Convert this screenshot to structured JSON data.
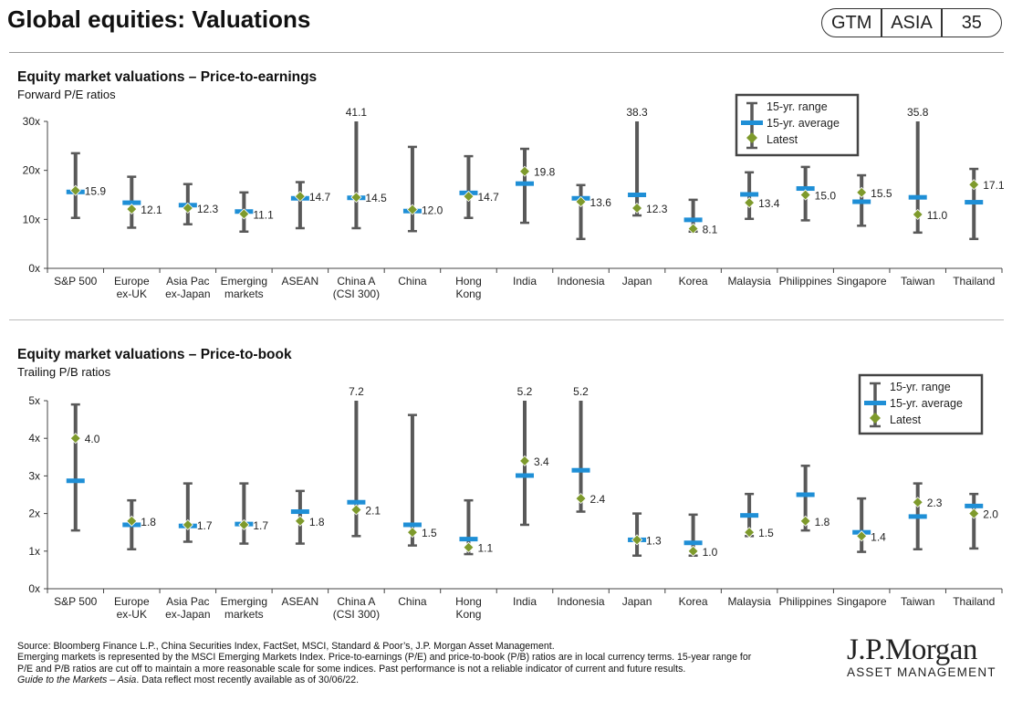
{
  "header": {
    "title": "Global equities: Valuations",
    "badge": [
      "GTM",
      "ASIA",
      "35"
    ]
  },
  "legend": {
    "range": "15-yr. range",
    "average": "15-yr. average",
    "latest": "Latest"
  },
  "colors": {
    "range": "#595959",
    "average": "#1f8fd6",
    "latest": "#7e9a2c",
    "text": "#222222"
  },
  "chart_data": [
    {
      "type": "range-bar",
      "title": "Equity market valuations – Price-to-earnings",
      "subtitle": "Forward P/E ratios",
      "ylim": [
        0,
        30
      ],
      "yticks": [
        0,
        10,
        20,
        30
      ],
      "ytick_labels": [
        "0x",
        "10x",
        "20x",
        "30x"
      ],
      "categories": [
        "S&P 500",
        "Europe\nex-UK",
        "Asia Pac\nex-Japan",
        "Emerging\nmarkets",
        "ASEAN",
        "China A\n(CSI 300)",
        "China",
        "Hong\nKong",
        "India",
        "Indonesia",
        "Japan",
        "Korea",
        "Malaysia",
        "Philippines",
        "Singapore",
        "Taiwan",
        "Thailand"
      ],
      "range_low": [
        10.3,
        8.3,
        9.0,
        7.5,
        8.2,
        8.2,
        7.6,
        10.3,
        9.3,
        6.0,
        10.8,
        7.5,
        10.1,
        9.8,
        8.7,
        7.3,
        6.0
      ],
      "range_high": [
        23.5,
        18.7,
        17.2,
        15.5,
        17.6,
        41.1,
        24.8,
        22.9,
        24.4,
        17.0,
        38.3,
        14.0,
        19.6,
        20.7,
        19.0,
        35.8,
        20.3
      ],
      "average": [
        15.6,
        13.4,
        12.9,
        11.6,
        14.3,
        14.4,
        11.7,
        15.4,
        17.3,
        14.3,
        15.0,
        9.9,
        15.1,
        16.3,
        13.6,
        14.5,
        13.5
      ],
      "latest": [
        15.9,
        12.1,
        12.3,
        11.1,
        14.7,
        14.5,
        12.0,
        14.7,
        19.8,
        13.6,
        12.3,
        8.1,
        13.4,
        15.0,
        15.5,
        11.0,
        17.1
      ],
      "latest_labels": [
        "15.9",
        "12.1",
        "12.3",
        "11.1",
        "14.7",
        "14.5",
        "12.0",
        "14.7",
        "19.8",
        "13.6",
        "12.3",
        "8.1",
        "13.4",
        "15.0",
        "15.5",
        "11.0",
        "17.1"
      ],
      "cutoff_labels": [
        "",
        "",
        "",
        "",
        "",
        "41.1",
        "",
        "",
        "",
        "",
        "38.3",
        "",
        "",
        "",
        "",
        "35.8",
        ""
      ]
    },
    {
      "type": "range-bar",
      "title": "Equity market valuations – Price-to-book",
      "subtitle": "Trailing P/B ratios",
      "ylim": [
        0,
        5
      ],
      "yticks": [
        0,
        1,
        2,
        3,
        4,
        5
      ],
      "ytick_labels": [
        "0x",
        "1x",
        "2x",
        "3x",
        "4x",
        "5x"
      ],
      "categories": [
        "S&P 500",
        "Europe\nex-UK",
        "Asia Pac\nex-Japan",
        "Emerging\nmarkets",
        "ASEAN",
        "China A\n(CSI 300)",
        "China",
        "Hong\nKong",
        "India",
        "Indonesia",
        "Japan",
        "Korea",
        "Malaysia",
        "Philippines",
        "Singapore",
        "Taiwan",
        "Thailand"
      ],
      "range_low": [
        1.55,
        1.05,
        1.25,
        1.2,
        1.2,
        1.4,
        1.15,
        0.92,
        1.7,
        2.05,
        0.88,
        0.88,
        1.4,
        1.55,
        0.98,
        1.05,
        1.07
      ],
      "range_high": [
        4.9,
        2.35,
        2.8,
        2.8,
        2.6,
        7.2,
        4.62,
        2.35,
        5.2,
        5.2,
        2.0,
        1.97,
        2.52,
        3.27,
        2.4,
        2.8,
        2.52
      ],
      "average": [
        2.87,
        1.7,
        1.67,
        1.72,
        2.05,
        2.3,
        1.7,
        1.32,
        3.01,
        3.15,
        1.3,
        1.22,
        1.95,
        2.5,
        1.5,
        1.92,
        2.2
      ],
      "latest": [
        4.0,
        1.8,
        1.7,
        1.7,
        1.8,
        2.1,
        1.5,
        1.1,
        3.4,
        2.4,
        1.3,
        1.0,
        1.5,
        1.8,
        1.4,
        2.3,
        2.0
      ],
      "latest_labels": [
        "4.0",
        "1.8",
        "1.7",
        "1.7",
        "1.8",
        "2.1",
        "1.5",
        "1.1",
        "3.4",
        "2.4",
        "1.3",
        "1.0",
        "1.5",
        "1.8",
        "1.4",
        "2.3",
        "2.0"
      ],
      "cutoff_labels": [
        "",
        "",
        "",
        "",
        "",
        "7.2",
        "",
        "",
        "5.2",
        "5.2",
        "",
        "",
        "",
        "",
        "",
        "",
        ""
      ]
    }
  ],
  "footnotes": {
    "source": "Source: Bloomberg Finance L.P., China Securities Index, FactSet, MSCI, Standard & Poor’s, J.P. Morgan Asset Management.",
    "note1": "Emerging markets is represented by the MSCI Emerging Markets Index. Price-to-earnings (P/E) and price-to-book (P/B) ratios are in local currency terms. 15-year range for",
    "note2": "P/E and P/B ratios are cut off to maintain a more reasonable scale for some indices. Past performance is not a reliable indicator of current and future results.",
    "guide_italic": "Guide to the Markets – Asia",
    "guide_rest": ". Data reflect most recently available as of 30/06/22."
  },
  "logo": {
    "main": "J.P.Morgan",
    "sub": "ASSET MANAGEMENT"
  }
}
